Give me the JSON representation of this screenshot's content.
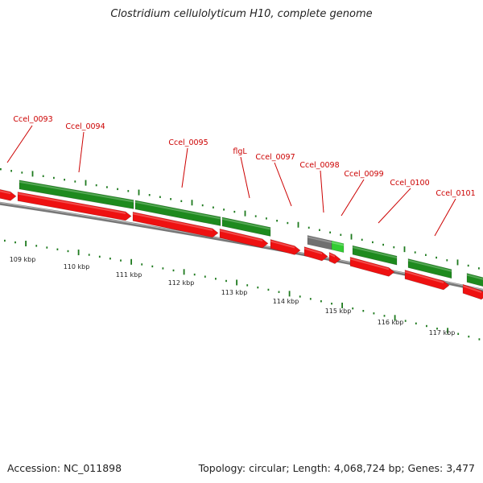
{
  "title": "Clostridium cellulolyticum H10, complete genome",
  "footer": {
    "accession": "Accession: NC_011898",
    "summary": "Topology: circular; Length: 4,068,724 bp; Genes: 3,477"
  },
  "colors": {
    "cds": "#1e8a1e",
    "gene": "#ee1111",
    "other": "#707070",
    "highlight": "#33cc33",
    "label": "#cc0000",
    "backbone": "#888888",
    "tick": "#1e7a1e"
  },
  "kbp_labels": [
    "109 kbp",
    "110 kbp",
    "111 kbp",
    "112 kbp",
    "113 kbp",
    "114 kbp",
    "115 kbp",
    "116 kbp",
    "117 kbp"
  ],
  "gene_labels": [
    "Ccel_0093",
    "Ccel_0094",
    "Ccel_0095",
    "flgL",
    "Ccel_0097",
    "Ccel_0098",
    "Ccel_0099",
    "Ccel_0100",
    "Ccel_0101"
  ]
}
